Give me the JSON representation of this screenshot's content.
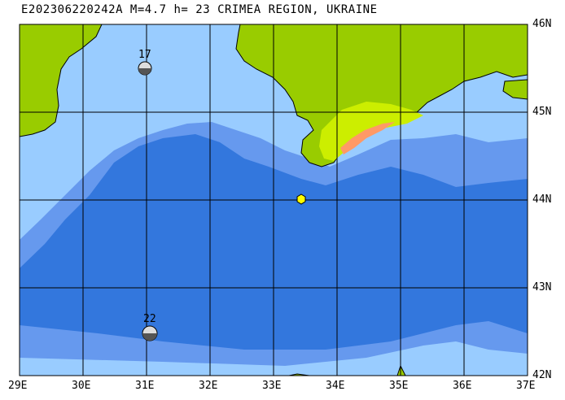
{
  "map": {
    "title": "E202306220242A M=4.7 h= 23 CRIMEA REGION, UKRAINE",
    "lon_labels": [
      "29E",
      "30E",
      "31E",
      "32E",
      "33E",
      "34E",
      "35E",
      "36E",
      "37E"
    ],
    "lat_labels": [
      "46N",
      "45N",
      "44N",
      "43N",
      "42N"
    ],
    "lon_range": [
      29,
      37
    ],
    "lat_range": [
      42,
      46
    ],
    "stations": [
      {
        "label": "17",
        "lon": 30.95,
        "lat": 45.5
      },
      {
        "label": "22",
        "lon": 31.05,
        "lat": 42.5
      }
    ],
    "epicenter": {
      "lon": 33.45,
      "lat": 44.0,
      "color": "#ffff00"
    },
    "colors": {
      "land": "#99cc00",
      "land_high": "#ccee00",
      "land_peak": "#ff9966",
      "shelf": "#99ccff",
      "slope": "#6699ee",
      "deep": "#3377dd"
    },
    "grid": true
  }
}
